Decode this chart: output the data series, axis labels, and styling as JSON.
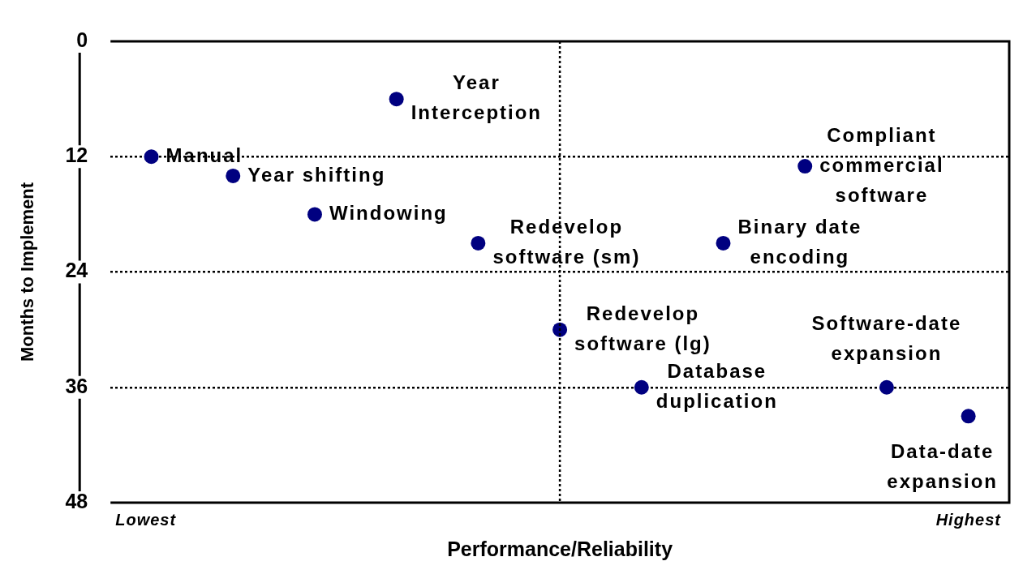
{
  "chart_data": {
    "type": "scatter",
    "xlabel": "Performance/Reliability",
    "ylabel": "Months to Implement",
    "categories": [
      null,
      null,
      null,
      null,
      null,
      null,
      null,
      null,
      null,
      null,
      null
    ],
    "values": [
      12,
      14,
      18,
      6,
      21,
      30,
      36,
      21,
      13,
      36,
      39
    ],
    "value_labels": [
      "Manual",
      "Year shifting",
      "Windowing",
      "Year Interception",
      "Redevelop software (sm)",
      "Redevelop software (lg)",
      "Database duplication",
      "Binary date encoding",
      "Compliant commercial software",
      "Software-date expansion",
      "Data-date expansion"
    ],
    "color": "#000080",
    "marker": "circle",
    "ylim": [
      48,
      0
    ],
    "yticks": [
      0,
      12,
      24,
      36,
      48
    ],
    "grid": "y",
    "ref_lines": [
      {
        "axis": "x",
        "line_style": "dotted"
      }
    ],
    "annotations": [
      "Lowest",
      "Highest"
    ]
  }
}
